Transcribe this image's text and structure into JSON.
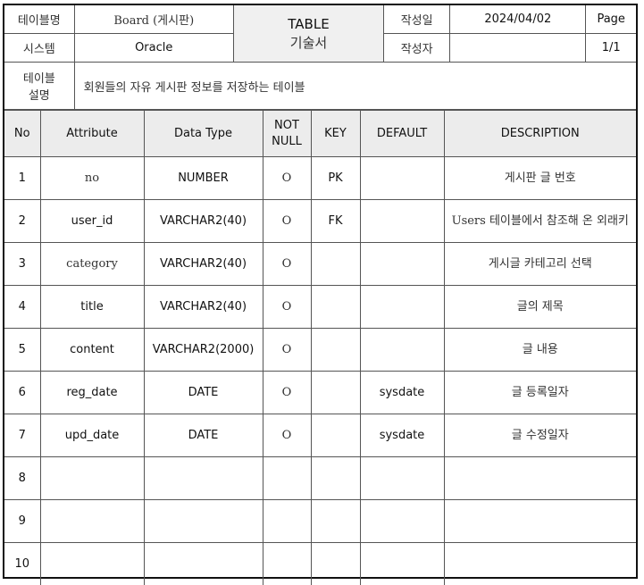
{
  "header": {
    "table_name_label": "테이블명",
    "table_name_value": "Board (게시판)",
    "title_line1": "TABLE",
    "title_line2": "기술서",
    "date_label": "작성일",
    "date_value": "2024/04/02",
    "page_label": "Page",
    "system_label": "시스템",
    "system_value": "Oracle",
    "author_label": "작성자",
    "author_value": "",
    "page_value": "1/1",
    "desc_label_line1": "테이블",
    "desc_label_line2": "설명",
    "desc_value": "회원들의 자유 게시판 정보를 저장하는 테이블"
  },
  "columns": {
    "no": "No",
    "attribute": "Attribute",
    "data_type": "Data Type",
    "not_null_line1": "NOT",
    "not_null_line2": "NULL",
    "key": "KEY",
    "default": "DEFAULT",
    "description": "DESCRIPTION"
  },
  "rows": [
    {
      "no": "1",
      "attribute": "no",
      "data_type": "NUMBER",
      "not_null": "O",
      "key": "PK",
      "default": "",
      "description": "게시판 글 번호"
    },
    {
      "no": "2",
      "attribute": "user_id",
      "data_type": "VARCHAR2(40)",
      "not_null": "O",
      "key": "FK",
      "default": "",
      "description": "Users 테이블에서 참조해 온 외래키"
    },
    {
      "no": "3",
      "attribute": "category",
      "data_type": "VARCHAR2(40)",
      "not_null": "O",
      "key": "",
      "default": "",
      "description": "게시글 카테고리 선택"
    },
    {
      "no": "4",
      "attribute": "title",
      "data_type": "VARCHAR2(40)",
      "not_null": "O",
      "key": "",
      "default": "",
      "description": "글의 제목"
    },
    {
      "no": "5",
      "attribute": "content",
      "data_type": "VARCHAR2(2000)",
      "not_null": "O",
      "key": "",
      "default": "",
      "description": "글 내용"
    },
    {
      "no": "6",
      "attribute": "reg_date",
      "data_type": "DATE",
      "not_null": "O",
      "key": "",
      "default": "sysdate",
      "description": "글 등록일자"
    },
    {
      "no": "7",
      "attribute": "upd_date",
      "data_type": "DATE",
      "not_null": "O",
      "key": "",
      "default": "sysdate",
      "description": "글 수정일자"
    },
    {
      "no": "8",
      "attribute": "",
      "data_type": "",
      "not_null": "",
      "key": "",
      "default": "",
      "description": ""
    },
    {
      "no": "9",
      "attribute": "",
      "data_type": "",
      "not_null": "",
      "key": "",
      "default": "",
      "description": ""
    },
    {
      "no": "10",
      "attribute": "",
      "data_type": "",
      "not_null": "",
      "key": "",
      "default": "",
      "description": ""
    }
  ]
}
